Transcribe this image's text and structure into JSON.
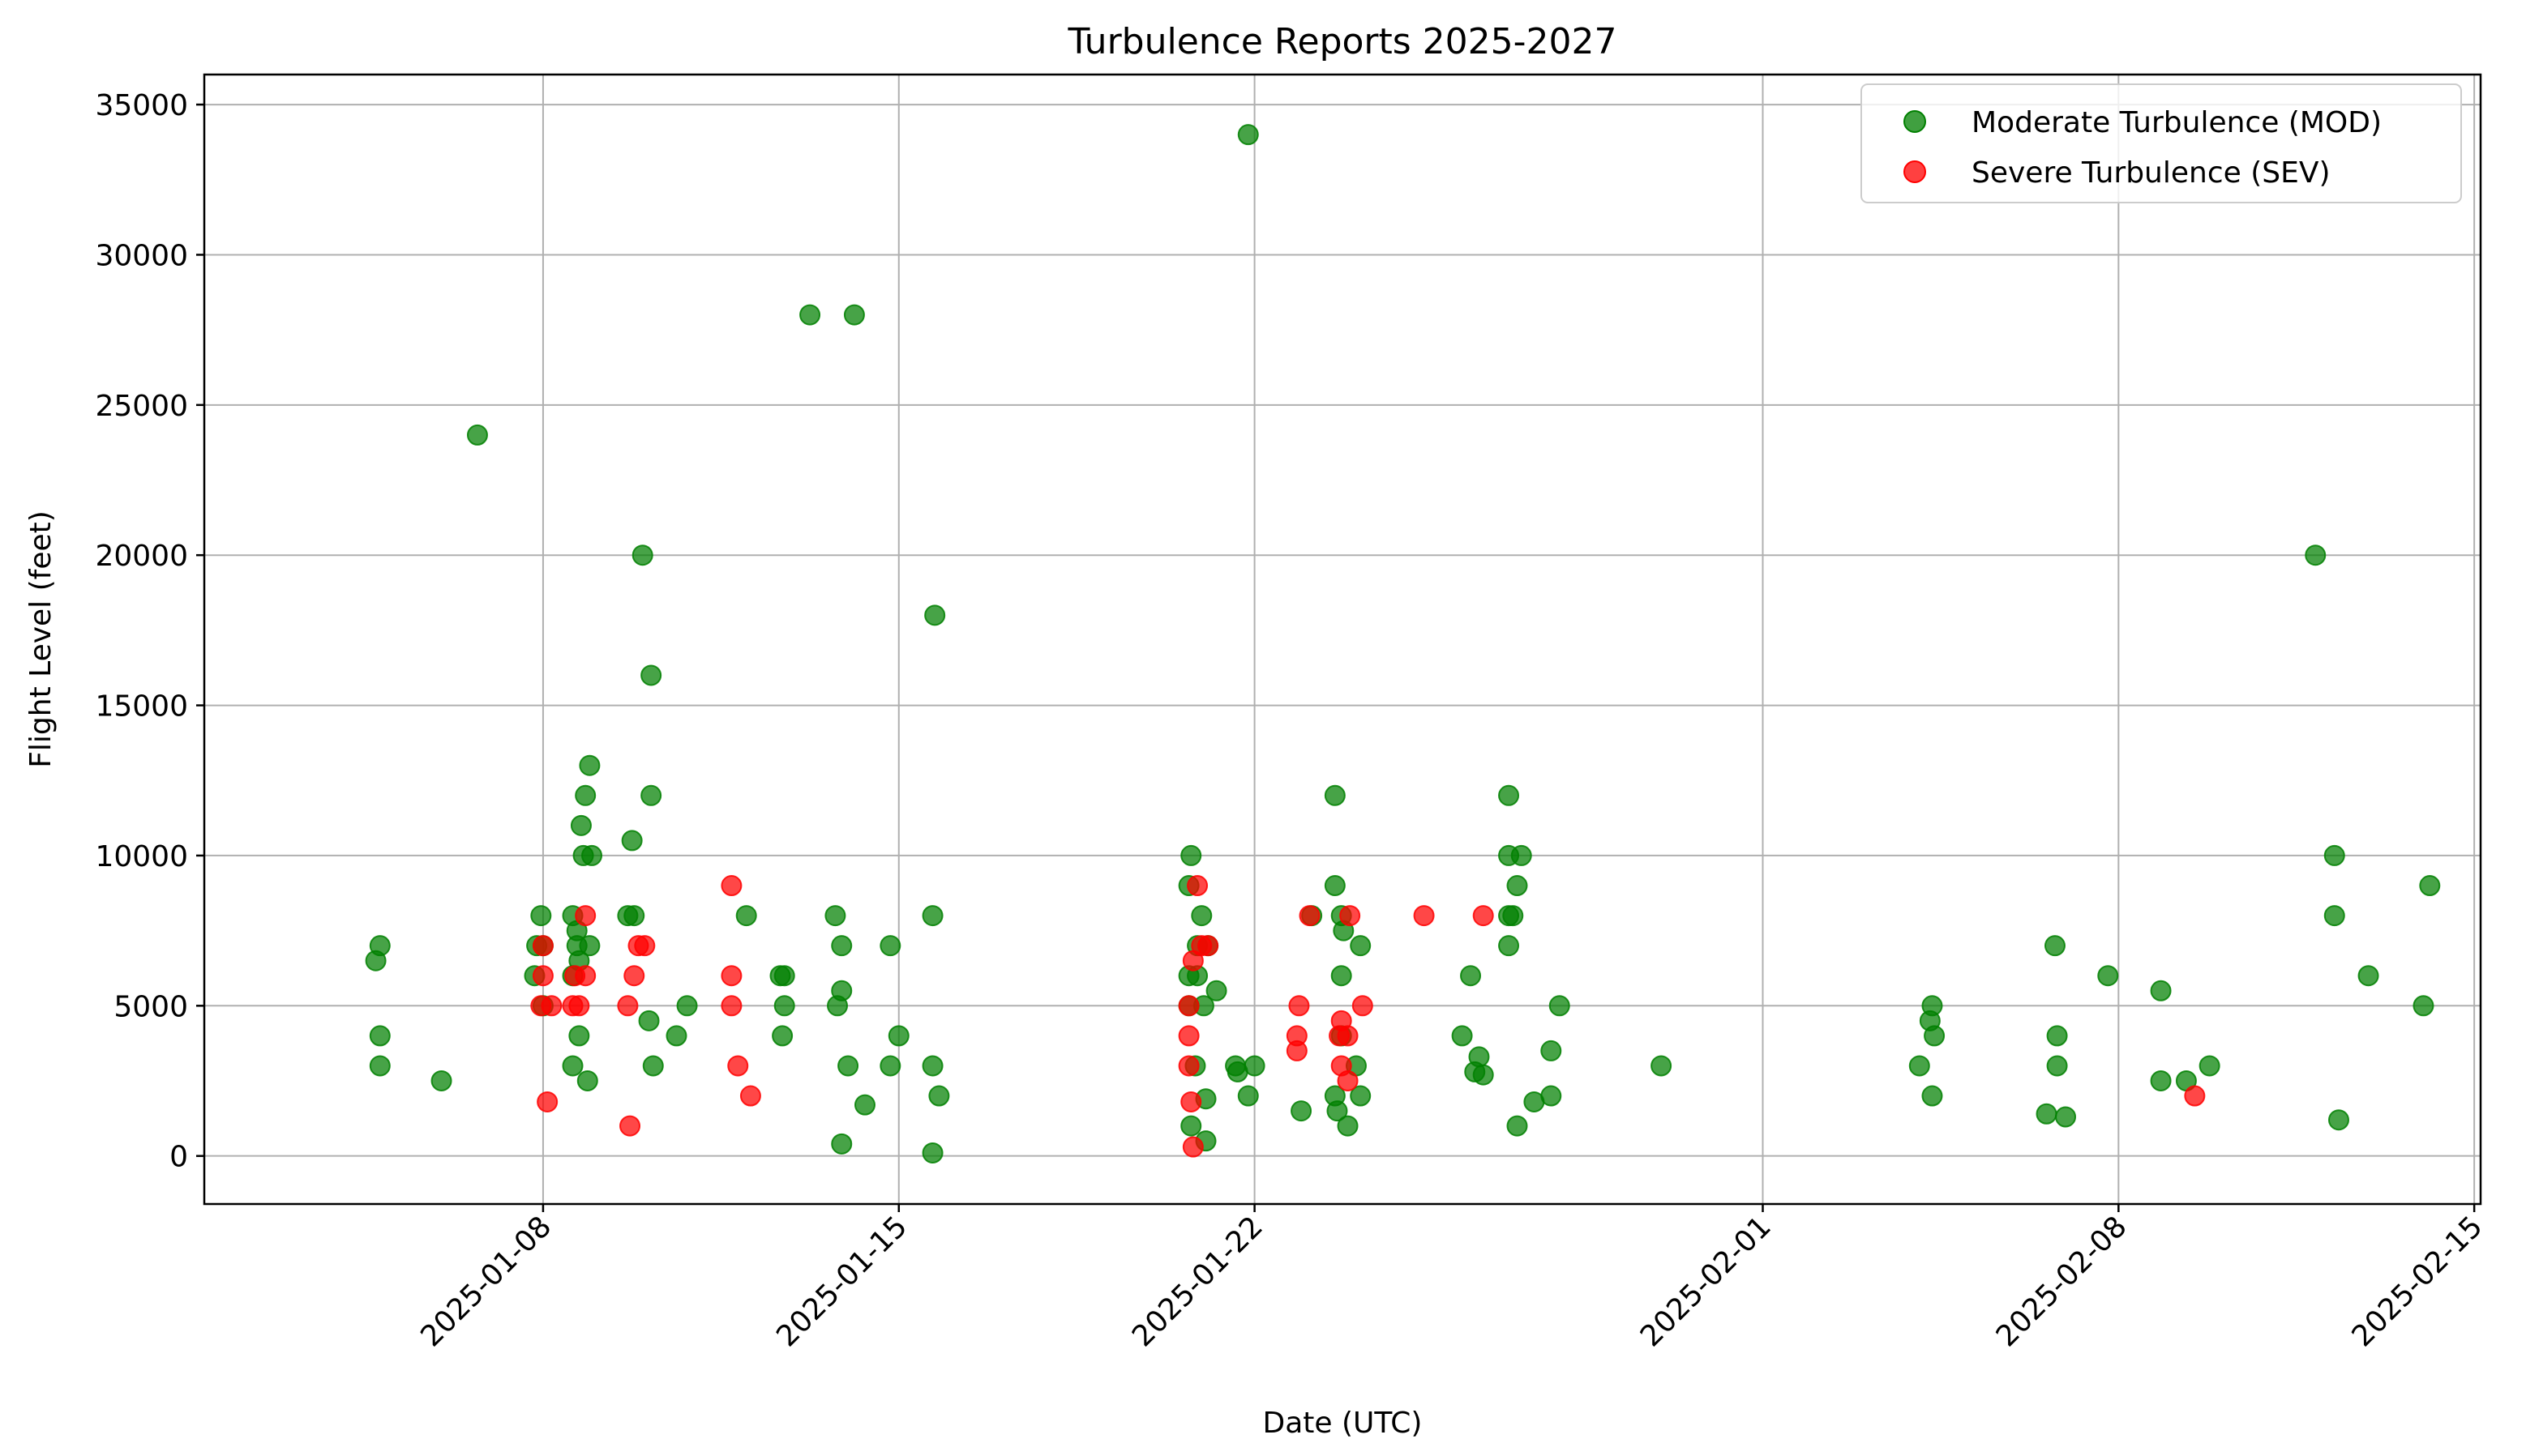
{
  "chart_data": {
    "type": "scatter",
    "title": "Turbulence Reports 2025-2027",
    "xlabel": "Date (UTC)",
    "ylabel": "Flight Level (feet)",
    "xlim": [
      "2025-01-01T08:00",
      "2025-02-15T03:00"
    ],
    "ylim": [
      -1600,
      36000
    ],
    "x_ticks": [
      "2025-01-08",
      "2025-01-15",
      "2025-01-22",
      "2025-02-01",
      "2025-02-08",
      "2025-02-15"
    ],
    "y_ticks": [
      0,
      5000,
      10000,
      15000,
      20000,
      25000,
      30000,
      35000
    ],
    "grid": true,
    "legend": "top-right",
    "series": [
      {
        "name": "Moderate Turbulence (MOD)",
        "color": "#008000",
        "points": [
          [
            "2025-01-04T17:00",
            6500
          ],
          [
            "2025-01-04T19:00",
            7000
          ],
          [
            "2025-01-04T19:00",
            4000
          ],
          [
            "2025-01-04T19:00",
            3000
          ],
          [
            "2025-01-06T00:00",
            2500
          ],
          [
            "2025-01-06T17:00",
            24000
          ],
          [
            "2025-01-07T20:00",
            6000
          ],
          [
            "2025-01-07T21:00",
            7000
          ],
          [
            "2025-01-07T23:00",
            8000
          ],
          [
            "2025-01-08T00:00",
            7000
          ],
          [
            "2025-01-08T00:00",
            5000
          ],
          [
            "2025-01-08T14:00",
            3000
          ],
          [
            "2025-01-08T14:00",
            8000
          ],
          [
            "2025-01-08T14:00",
            6000
          ],
          [
            "2025-01-08T16:00",
            7500
          ],
          [
            "2025-01-08T16:00",
            7000
          ],
          [
            "2025-01-08T17:00",
            6500
          ],
          [
            "2025-01-08T17:00",
            4000
          ],
          [
            "2025-01-08T18:00",
            11000
          ],
          [
            "2025-01-08T19:00",
            10000
          ],
          [
            "2025-01-08T20:00",
            12000
          ],
          [
            "2025-01-08T21:00",
            2500
          ],
          [
            "2025-01-08T22:00",
            13000
          ],
          [
            "2025-01-08T22:00",
            7000
          ],
          [
            "2025-01-08T23:00",
            10000
          ],
          [
            "2025-01-09T16:00",
            8000
          ],
          [
            "2025-01-09T18:00",
            10500
          ],
          [
            "2025-01-09T19:00",
            8000
          ],
          [
            "2025-01-09T23:00",
            20000
          ],
          [
            "2025-01-10T02:00",
            4500
          ],
          [
            "2025-01-10T03:00",
            16000
          ],
          [
            "2025-01-10T03:00",
            12000
          ],
          [
            "2025-01-10T04:00",
            3000
          ],
          [
            "2025-01-10T15:00",
            4000
          ],
          [
            "2025-01-10T20:00",
            5000
          ],
          [
            "2025-01-12T00:00",
            8000
          ],
          [
            "2025-01-12T16:00",
            6000
          ],
          [
            "2025-01-12T17:00",
            4000
          ],
          [
            "2025-01-12T18:00",
            6000
          ],
          [
            "2025-01-12T18:00",
            5000
          ],
          [
            "2025-01-13T06:00",
            28000
          ],
          [
            "2025-01-13T18:00",
            8000
          ],
          [
            "2025-01-13T19:00",
            5000
          ],
          [
            "2025-01-13T21:00",
            5500
          ],
          [
            "2025-01-13T21:00",
            7000
          ],
          [
            "2025-01-13T21:00",
            400
          ],
          [
            "2025-01-14T00:00",
            3000
          ],
          [
            "2025-01-14T03:00",
            28000
          ],
          [
            "2025-01-14T08:00",
            1700
          ],
          [
            "2025-01-14T20:00",
            7000
          ],
          [
            "2025-01-14T20:00",
            3000
          ],
          [
            "2025-01-15T00:00",
            4000
          ],
          [
            "2025-01-15T16:00",
            8000
          ],
          [
            "2025-01-15T16:00",
            3000
          ],
          [
            "2025-01-15T16:00",
            100
          ],
          [
            "2025-01-15T17:00",
            18000
          ],
          [
            "2025-01-15T19:00",
            2000
          ],
          [
            "2025-01-20T18:00",
            10000
          ],
          [
            "2025-01-20T17:00",
            9000
          ],
          [
            "2025-01-20T17:00",
            6000
          ],
          [
            "2025-01-20T17:00",
            5000
          ],
          [
            "2025-01-20T18:00",
            1000
          ],
          [
            "2025-01-20T20:00",
            3000
          ],
          [
            "2025-01-20T21:00",
            6000
          ],
          [
            "2025-01-20T21:00",
            7000
          ],
          [
            "2025-01-20T23:00",
            8000
          ],
          [
            "2025-01-21T00:00",
            5000
          ],
          [
            "2025-01-21T01:00",
            1900
          ],
          [
            "2025-01-21T01:00",
            500
          ],
          [
            "2025-01-21T02:00",
            7000
          ],
          [
            "2025-01-21T06:00",
            5500
          ],
          [
            "2025-01-21T15:00",
            3000
          ],
          [
            "2025-01-21T16:00",
            2800
          ],
          [
            "2025-01-21T21:00",
            2000
          ],
          [
            "2025-01-21T21:00",
            34000
          ],
          [
            "2025-01-22T00:00",
            3000
          ],
          [
            "2025-01-22T22:00",
            1500
          ],
          [
            "2025-01-23T03:00",
            8000
          ],
          [
            "2025-01-23T14:00",
            2000
          ],
          [
            "2025-01-23T14:00",
            12000
          ],
          [
            "2025-01-23T14:00",
            9000
          ],
          [
            "2025-01-23T15:00",
            1500
          ],
          [
            "2025-01-23T17:00",
            8000
          ],
          [
            "2025-01-23T17:00",
            6000
          ],
          [
            "2025-01-23T17:00",
            4000
          ],
          [
            "2025-01-23T18:00",
            7500
          ],
          [
            "2025-01-23T20:00",
            1000
          ],
          [
            "2025-01-24T00:00",
            3000
          ],
          [
            "2025-01-24T02:00",
            7000
          ],
          [
            "2025-01-24T02:00",
            2000
          ],
          [
            "2025-01-26T02:00",
            4000
          ],
          [
            "2025-01-26T06:00",
            6000
          ],
          [
            "2025-01-26T08:00",
            2800
          ],
          [
            "2025-01-26T10:00",
            3300
          ],
          [
            "2025-01-26T12:00",
            2700
          ],
          [
            "2025-01-27T00:00",
            12000
          ],
          [
            "2025-01-27T00:00",
            10000
          ],
          [
            "2025-01-27T00:00",
            8000
          ],
          [
            "2025-01-27T00:00",
            7000
          ],
          [
            "2025-01-27T02:00",
            8000
          ],
          [
            "2025-01-27T04:00",
            9000
          ],
          [
            "2025-01-27T04:00",
            1000
          ],
          [
            "2025-01-27T06:00",
            10000
          ],
          [
            "2025-01-27T12:00",
            1800
          ],
          [
            "2025-01-27T20:00",
            3500
          ],
          [
            "2025-01-27T20:00",
            2000
          ],
          [
            "2025-01-28T00:00",
            5000
          ],
          [
            "2025-01-30T00:00",
            3000
          ],
          [
            "2025-02-04T02:00",
            3000
          ],
          [
            "2025-02-04T07:00",
            4500
          ],
          [
            "2025-02-04T08:00",
            5000
          ],
          [
            "2025-02-04T08:00",
            2000
          ],
          [
            "2025-02-04T09:00",
            4000
          ],
          [
            "2025-02-06T14:00",
            1400
          ],
          [
            "2025-02-06T18:00",
            7000
          ],
          [
            "2025-02-06T19:00",
            4000
          ],
          [
            "2025-02-06T19:00",
            3000
          ],
          [
            "2025-02-06T23:00",
            1300
          ],
          [
            "2025-02-07T19:00",
            6000
          ],
          [
            "2025-02-08T20:00",
            2500
          ],
          [
            "2025-02-08T20:00",
            5500
          ],
          [
            "2025-02-09T08:00",
            2500
          ],
          [
            "2025-02-09T19:00",
            3000
          ],
          [
            "2025-02-11T21:00",
            20000
          ],
          [
            "2025-02-12T06:00",
            10000
          ],
          [
            "2025-02-12T06:00",
            8000
          ],
          [
            "2025-02-12T08:00",
            1200
          ],
          [
            "2025-02-12T22:00",
            6000
          ],
          [
            "2025-02-14T00:00",
            5000
          ],
          [
            "2025-02-14T03:00",
            9000
          ]
        ]
      },
      {
        "name": "Severe Turbulence (SEV)",
        "color": "#ff0000",
        "points": [
          [
            "2025-01-07T23:00",
            5000
          ],
          [
            "2025-01-08T00:00",
            7000
          ],
          [
            "2025-01-08T00:00",
            6000
          ],
          [
            "2025-01-08T02:00",
            1800
          ],
          [
            "2025-01-08T04:00",
            5000
          ],
          [
            "2025-01-08T14:00",
            5000
          ],
          [
            "2025-01-08T15:00",
            6000
          ],
          [
            "2025-01-08T17:00",
            5000
          ],
          [
            "2025-01-08T20:00",
            8000
          ],
          [
            "2025-01-08T20:00",
            6000
          ],
          [
            "2025-01-09T16:00",
            5000
          ],
          [
            "2025-01-09T17:00",
            1000
          ],
          [
            "2025-01-09T19:00",
            6000
          ],
          [
            "2025-01-09T21:00",
            7000
          ],
          [
            "2025-01-10T00:00",
            7000
          ],
          [
            "2025-01-11T17:00",
            9000
          ],
          [
            "2025-01-11T17:00",
            6000
          ],
          [
            "2025-01-11T17:00",
            5000
          ],
          [
            "2025-01-11T20:00",
            3000
          ],
          [
            "2025-01-12T02:00",
            2000
          ],
          [
            "2025-01-20T17:00",
            5000
          ],
          [
            "2025-01-20T17:00",
            4000
          ],
          [
            "2025-01-20T17:00",
            3000
          ],
          [
            "2025-01-20T18:00",
            1800
          ],
          [
            "2025-01-20T19:00",
            6500
          ],
          [
            "2025-01-20T19:00",
            300
          ],
          [
            "2025-01-20T21:00",
            9000
          ],
          [
            "2025-01-20T23:00",
            7000
          ],
          [
            "2025-01-21T02:00",
            7000
          ],
          [
            "2025-01-22T20:00",
            4000
          ],
          [
            "2025-01-22T20:00",
            3500
          ],
          [
            "2025-01-22T21:00",
            5000
          ],
          [
            "2025-01-23T02:00",
            8000
          ],
          [
            "2025-01-23T16:00",
            4000
          ],
          [
            "2025-01-23T17:00",
            3000
          ],
          [
            "2025-01-23T17:00",
            4500
          ],
          [
            "2025-01-23T20:00",
            2500
          ],
          [
            "2025-01-23T21:00",
            8000
          ],
          [
            "2025-01-23T20:00",
            4000
          ],
          [
            "2025-01-24T03:00",
            5000
          ],
          [
            "2025-01-25T08:00",
            8000
          ],
          [
            "2025-01-26T12:00",
            8000
          ],
          [
            "2025-02-09T12:00",
            2000
          ]
        ]
      }
    ]
  }
}
